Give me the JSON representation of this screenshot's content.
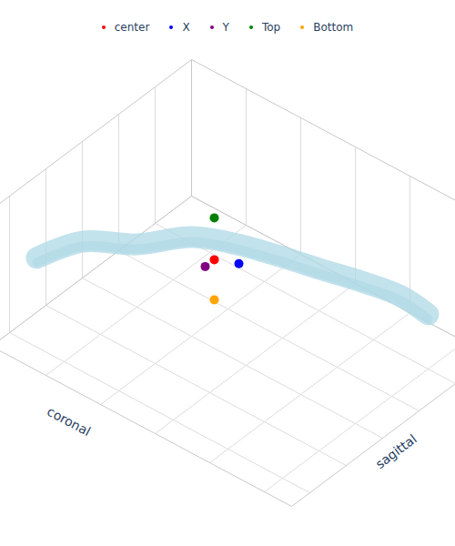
{
  "chart_data": {
    "type": "scatter3d",
    "xlabel": "coronal",
    "ylabel": "sagittal",
    "xlim": [
      0,
      1.1
    ],
    "ylim": [
      0,
      1.1
    ],
    "zlim": [
      0,
      0.75
    ],
    "xticks": [
      0,
      0.2,
      0.4,
      0.6,
      0.8,
      1
    ],
    "yticks": [
      0,
      0.2,
      0.4,
      0.6,
      0.8,
      1
    ],
    "grid": true,
    "tick_labels": false,
    "legend": "top",
    "surface": {
      "color": "lightblue",
      "x": [
        0.053,
        0.13,
        0.281,
        0.403,
        0.521,
        0.655,
        0.766,
        0.903,
        0.968,
        1.0
      ],
      "y": [
        0.93,
        0.795,
        0.721,
        0.604,
        0.531,
        0.482,
        0.449,
        0.404,
        0.301,
        0.2
      ],
      "z": [
        0.4,
        0.45,
        0.5,
        0.55,
        0.55,
        0.55,
        0.55,
        0.55,
        0.45,
        0.3
      ]
    },
    "series": [
      {
        "name": "center",
        "color": "red",
        "x": [
          0.49
        ],
        "y": [
          0.61
        ],
        "z": [
          0.5
        ]
      },
      {
        "name": "X",
        "color": "blue",
        "x": [
          0.58
        ],
        "y": [
          0.61
        ],
        "z": [
          0.55
        ]
      },
      {
        "name": "Y",
        "color": "purple",
        "x": [
          0.49
        ],
        "y": [
          0.66
        ],
        "z": [
          0.5
        ]
      },
      {
        "name": "Top",
        "color": "green",
        "x": [
          0.49
        ],
        "y": [
          0.61
        ],
        "z": [
          0.73
        ]
      },
      {
        "name": "Bottom",
        "color": "orange",
        "x": [
          0.49
        ],
        "y": [
          0.61
        ],
        "z": [
          0.28
        ]
      }
    ]
  }
}
